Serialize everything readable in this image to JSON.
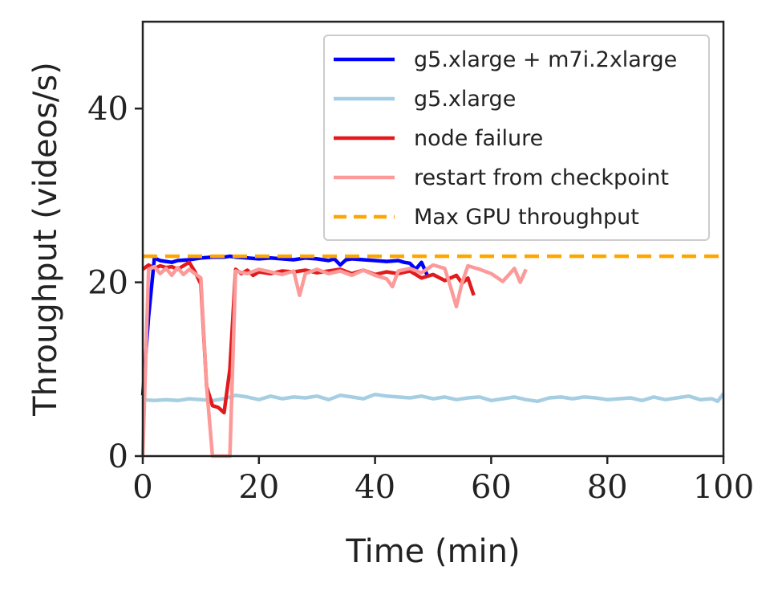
{
  "chart_data": {
    "type": "line",
    "xlabel": "Time (min)",
    "ylabel": "Throughput (videos/s)",
    "xlim": [
      0,
      100
    ],
    "ylim": [
      0,
      50
    ],
    "xticks": [
      0,
      20,
      40,
      60,
      80,
      100
    ],
    "yticks": [
      0,
      20,
      40
    ],
    "grid": false,
    "legend_position": "top-right",
    "series": [
      {
        "name": "g5.xlarge + m7i.2xlarge",
        "color": "#0000ff",
        "style": "solid",
        "x": [
          0,
          1,
          2,
          3,
          4,
          5,
          6,
          8,
          10,
          12,
          14,
          15,
          16,
          18,
          20,
          22,
          24,
          26,
          28,
          30,
          32,
          33,
          34,
          35,
          36,
          38,
          40,
          42,
          44,
          45,
          46,
          47,
          48,
          49
        ],
        "y": [
          7,
          16,
          22.8,
          22.5,
          22.4,
          22.3,
          22.5,
          22.6,
          22.8,
          22.9,
          22.9,
          23.0,
          22.9,
          22.8,
          22.7,
          22.8,
          22.7,
          22.6,
          22.8,
          22.7,
          22.5,
          22.7,
          22.0,
          22.6,
          22.7,
          22.6,
          22.5,
          22.4,
          22.5,
          22.3,
          22.2,
          21.5,
          22.3,
          20.8
        ]
      },
      {
        "name": "g5.xlarge",
        "color": "#a6cee3",
        "style": "solid",
        "x": [
          0,
          2,
          4,
          6,
          8,
          10,
          12,
          14,
          16,
          18,
          20,
          22,
          24,
          26,
          28,
          30,
          32,
          34,
          36,
          38,
          40,
          42,
          44,
          46,
          48,
          50,
          52,
          54,
          56,
          58,
          60,
          62,
          64,
          66,
          68,
          70,
          72,
          74,
          76,
          78,
          80,
          82,
          84,
          86,
          88,
          90,
          92,
          94,
          96,
          98,
          99,
          100
        ],
        "y": [
          6.5,
          6.4,
          6.5,
          6.4,
          6.6,
          6.5,
          6.4,
          6.6,
          7.0,
          6.8,
          6.5,
          6.9,
          6.6,
          6.8,
          6.7,
          6.9,
          6.5,
          7.0,
          6.8,
          6.6,
          7.1,
          6.9,
          6.8,
          6.7,
          6.9,
          6.6,
          6.8,
          6.5,
          6.7,
          6.8,
          6.4,
          6.6,
          6.8,
          6.5,
          6.3,
          6.7,
          6.8,
          6.6,
          6.8,
          6.7,
          6.5,
          6.6,
          6.7,
          6.4,
          6.8,
          6.5,
          6.7,
          6.9,
          6.5,
          6.6,
          6.3,
          7.2
        ]
      },
      {
        "name": "node failure",
        "color": "#e31a1c",
        "style": "solid",
        "x": [
          0,
          1,
          2,
          3,
          4,
          5,
          6,
          7,
          8,
          9,
          10,
          11,
          12,
          13,
          14,
          15,
          16,
          17,
          18,
          19,
          20,
          22,
          24,
          26,
          28,
          30,
          32,
          34,
          36,
          38,
          40,
          42,
          44,
          46,
          48,
          50,
          52,
          54,
          55,
          56,
          57
        ],
        "y": [
          21.5,
          22.0,
          21.6,
          21.9,
          21.7,
          21.8,
          21.5,
          21.9,
          22.3,
          21.2,
          19.8,
          8.0,
          5.8,
          5.6,
          5.0,
          10.0,
          21.5,
          21.0,
          21.4,
          20.8,
          21.2,
          21.0,
          21.3,
          21.2,
          21.4,
          21.1,
          21.3,
          21.5,
          21.0,
          21.4,
          20.9,
          21.2,
          21.0,
          21.3,
          20.5,
          20.9,
          20.2,
          20.8,
          19.9,
          20.5,
          18.5
        ]
      },
      {
        "name": "restart from checkpoint",
        "color": "#fb9a99",
        "style": "solid",
        "x": [
          0,
          1,
          2,
          3,
          4,
          5,
          6,
          7,
          8,
          9,
          10,
          11,
          12,
          13,
          14,
          15,
          16,
          18,
          20,
          22,
          24,
          26,
          27,
          28,
          30,
          32,
          34,
          36,
          38,
          40,
          42,
          43,
          44,
          46,
          48,
          50,
          52,
          53,
          54,
          55,
          56,
          58,
          60,
          62,
          64,
          65,
          66
        ],
        "y": [
          0,
          21.5,
          21.8,
          21.0,
          21.6,
          20.8,
          21.7,
          20.9,
          21.5,
          21.0,
          20.5,
          8.0,
          0,
          0,
          0,
          0,
          21.3,
          21.0,
          21.5,
          21.2,
          20.9,
          21.3,
          18.5,
          21.0,
          21.5,
          21.0,
          21.3,
          20.8,
          21.4,
          20.8,
          20.4,
          19.5,
          21.3,
          21.6,
          21.1,
          22.0,
          21.6,
          19.5,
          17.2,
          20.0,
          21.9,
          21.5,
          21.0,
          20.1,
          21.6,
          20.0,
          21.5
        ]
      },
      {
        "name": "Max GPU throughput",
        "color": "#ffa500",
        "style": "dashed",
        "x": [
          0,
          100
        ],
        "y": [
          23,
          23
        ]
      }
    ]
  }
}
